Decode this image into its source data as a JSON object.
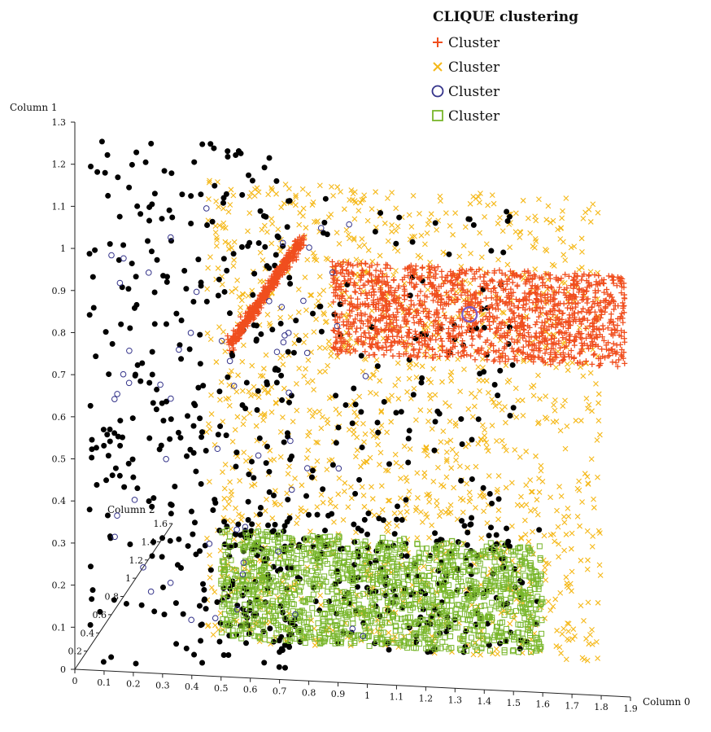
{
  "chart_data": {
    "type": "scatter",
    "projection": "3d",
    "title": "CLIQUE clustering",
    "legend_placement": "top-right",
    "grid": false,
    "axes": {
      "x": {
        "label": "Column 0",
        "range": [
          0,
          1.9
        ],
        "ticks": [
          "0",
          "0.1",
          "0.2",
          "0.3",
          "0.4",
          "0.5",
          "0.6",
          "0.7",
          "0.8",
          "0.9",
          "1",
          "1.1",
          "1.2",
          "1.3",
          "1.4",
          "1.5",
          "1.6",
          "1.7",
          "1.8",
          "1.9"
        ]
      },
      "y": {
        "label": "Column 1",
        "range": [
          0,
          1.3
        ],
        "ticks": [
          "0",
          "0.1",
          "0.2",
          "0.3",
          "0.4",
          "0.5",
          "0.6",
          "0.7",
          "0.8",
          "0.9",
          "1",
          "1.1",
          "1.2",
          "1.3"
        ]
      },
      "z": {
        "label": "Column 2",
        "range": [
          0,
          1.6
        ],
        "ticks": [
          "0",
          "0.2",
          "0.4",
          "0.6",
          "0.8",
          "1",
          "1.2",
          "1.4",
          "1.6"
        ]
      }
    },
    "noise": {
      "color": "#000000",
      "marker": "filled-circle"
    },
    "series": [
      {
        "name": "Cluster",
        "marker": "plus",
        "color": "#f04e1e",
        "clusters": [
          {
            "x_range": [
              0.53,
              0.78
            ],
            "y_range": [
              0.79,
              1.05
            ],
            "shape": "diagonal-streak",
            "points": 450
          },
          {
            "x_range": [
              0.88,
              1.88
            ],
            "y_range": [
              0.78,
              1.0
            ],
            "shape": "band",
            "points": 1500
          }
        ]
      },
      {
        "name": "Cluster",
        "marker": "x",
        "color": "#f5b818",
        "clusters": [
          {
            "x_range": [
              0.45,
              1.8
            ],
            "y_range": [
              0.08,
              1.18
            ],
            "shape": "diffuse",
            "points": 1400
          }
        ]
      },
      {
        "name": "Cluster",
        "marker": "circle",
        "color": "#34338a",
        "clusters": [
          {
            "x_range": [
              0.12,
              1.0
            ],
            "y_range": [
              0.1,
              1.12
            ],
            "shape": "sparse",
            "points": 60
          }
        ]
      },
      {
        "name": "Cluster",
        "marker": "square",
        "color": "#78b62b",
        "clusters": [
          {
            "x_range": [
              0.5,
              1.6
            ],
            "y_range": [
              0.09,
              0.35
            ],
            "shape": "band",
            "points": 1500
          }
        ]
      }
    ]
  },
  "colors": {
    "plus": "#f04e1e",
    "x": "#f5b818",
    "circle": "#34338a",
    "square": "#78b62b",
    "noise": "#000000",
    "axis": "#222222"
  }
}
